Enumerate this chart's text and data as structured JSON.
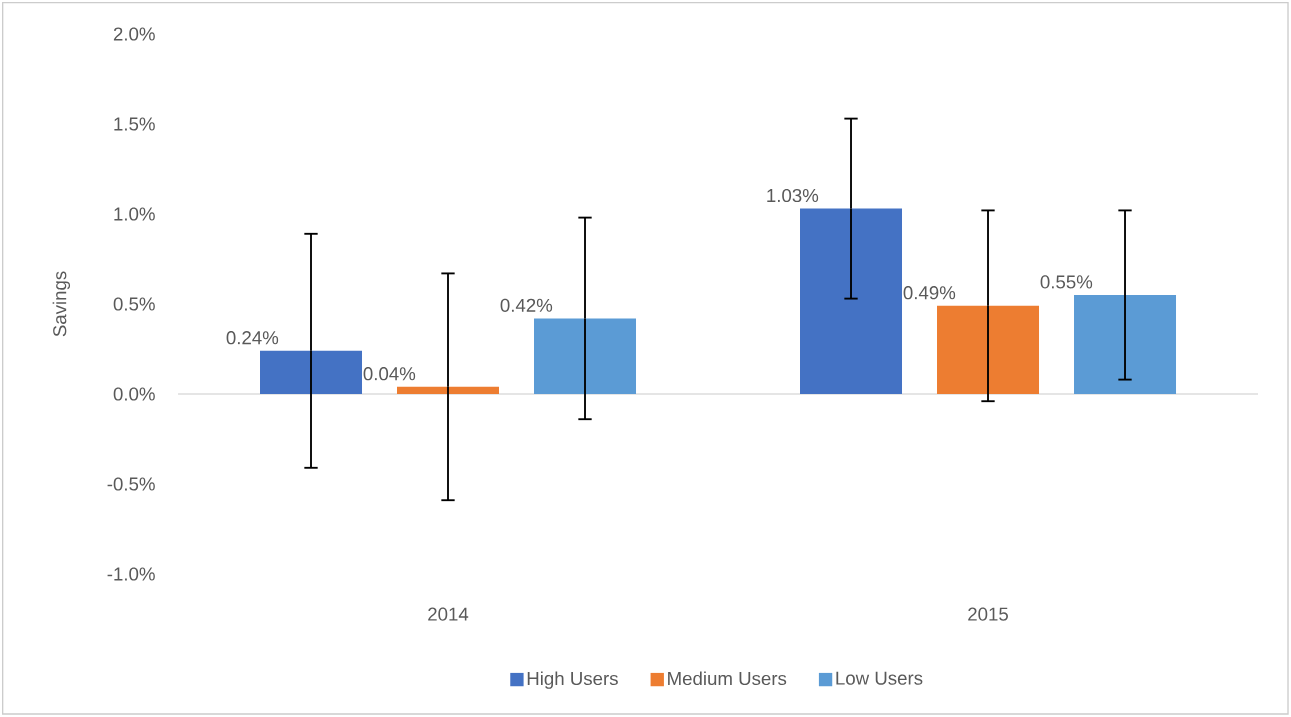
{
  "chart_data": {
    "type": "bar",
    "ylabel": "Savings",
    "categories": [
      "2014",
      "2015"
    ],
    "series": [
      {
        "name": "High Users",
        "color": "#4472c4",
        "values": [
          0.24,
          1.03
        ],
        "value_labels": [
          "0.24%",
          "1.03%"
        ],
        "errors": [
          0.65,
          0.5
        ]
      },
      {
        "name": "Medium Users",
        "color": "#ed7d31",
        "values": [
          0.04,
          0.49
        ],
        "value_labels": [
          "0.04%",
          "0.49%"
        ],
        "errors": [
          0.63,
          0.53
        ]
      },
      {
        "name": "Low Users",
        "color": "#5b9bd5",
        "values": [
          0.42,
          0.55
        ],
        "value_labels": [
          "0.42%",
          "0.55%"
        ],
        "errors": [
          0.56,
          0.47
        ]
      }
    ],
    "ylim": [
      -1.0,
      2.0
    ],
    "yticks": [
      {
        "value": -1.0,
        "label": "-1.0%"
      },
      {
        "value": -0.5,
        "label": "-0.5%"
      },
      {
        "value": 0,
        "label": "0.0%"
      },
      {
        "value": 0.5,
        "label": "0.5%"
      },
      {
        "value": 1.0,
        "label": "1.0%"
      },
      {
        "value": 1.5,
        "label": "1.5%"
      },
      {
        "value": 2.0,
        "label": "2.0%"
      }
    ],
    "legend": "bottom"
  }
}
